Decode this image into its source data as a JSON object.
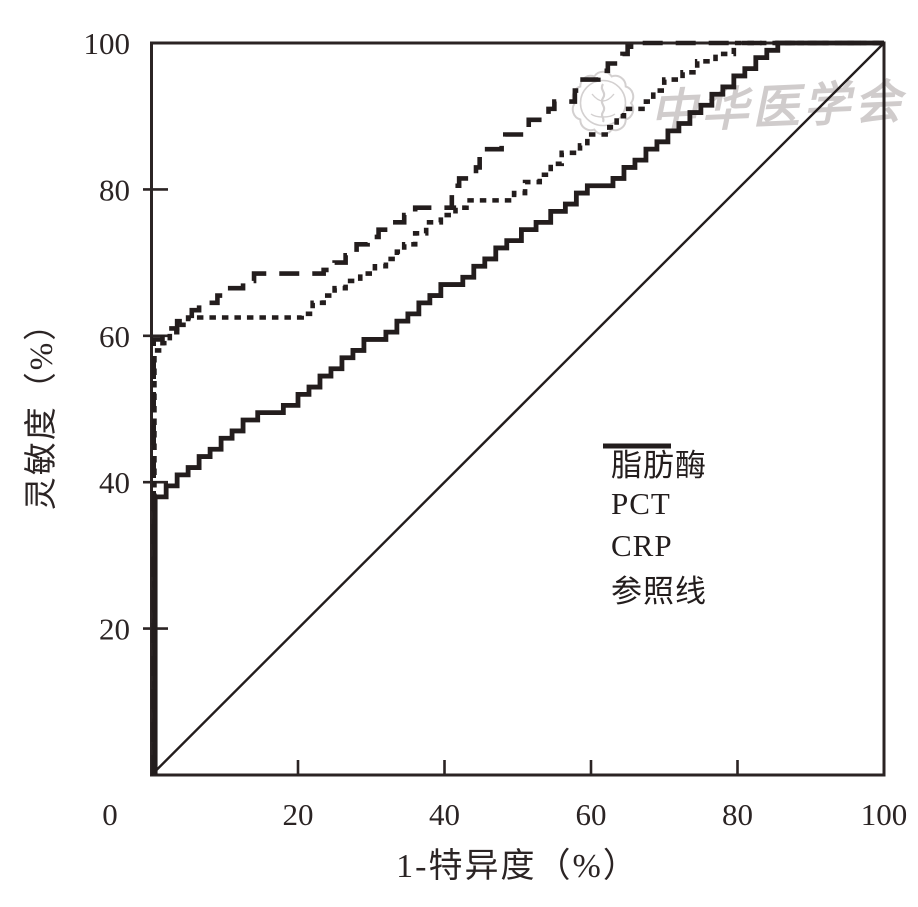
{
  "colors": {
    "line": "#231d1d",
    "frame": "#2b2424",
    "text": "#2b2424",
    "watermark": "#b2adad",
    "background": "#ffffff"
  },
  "watermark": {
    "text": "中华医学会",
    "seal_icon": "chinese-medical-association-seal"
  },
  "legend": {
    "items": [
      {
        "key": "lipase",
        "label": "脂肪酶",
        "line": "solid-thick"
      },
      {
        "key": "pct",
        "label": "PCT",
        "line": "dotted"
      },
      {
        "key": "crp",
        "label": "CRP",
        "line": "dashed"
      },
      {
        "key": "reference",
        "label": "参照线",
        "line": "solid-thin"
      }
    ]
  },
  "chart_data": {
    "type": "line",
    "subtype": "roc-step-curves",
    "title": "",
    "xlabel": "1-特异度（%）",
    "ylabel": "灵敏度（%）",
    "xlim": [
      0,
      100
    ],
    "ylim": [
      0,
      100
    ],
    "grid": false,
    "frame": true,
    "legend_position": "inside-lower-right",
    "x_tick_labels": [
      0,
      20,
      40,
      60,
      80,
      100
    ],
    "y_tick_labels": [
      20,
      40,
      60,
      80,
      100
    ],
    "x_tick_marks": [
      20,
      40,
      60,
      80
    ],
    "y_tick_marks": [
      20,
      40,
      60,
      80
    ],
    "series": [
      {
        "key": "lipase",
        "name": "脂肪酶",
        "line": "solid-thick",
        "straight": false,
        "points": [
          [
            0.5,
            0
          ],
          [
            0.5,
            38
          ],
          [
            2,
            39.5
          ],
          [
            3.5,
            41
          ],
          [
            5,
            42
          ],
          [
            6.5,
            43.5
          ],
          [
            8,
            44.5
          ],
          [
            9.5,
            46
          ],
          [
            11,
            47
          ],
          [
            12.5,
            48.5
          ],
          [
            14.5,
            49.5
          ],
          [
            18,
            50.5
          ],
          [
            20,
            52
          ],
          [
            21.5,
            53
          ],
          [
            23,
            54.5
          ],
          [
            24.5,
            55.5
          ],
          [
            26,
            57
          ],
          [
            27.5,
            58
          ],
          [
            29,
            59.5
          ],
          [
            32,
            60.5
          ],
          [
            33.5,
            62
          ],
          [
            35,
            63
          ],
          [
            36.5,
            64.5
          ],
          [
            38,
            65.5
          ],
          [
            39.5,
            67
          ],
          [
            42.5,
            68
          ],
          [
            44,
            69.5
          ],
          [
            45.5,
            70.5
          ],
          [
            47,
            72
          ],
          [
            48.5,
            73
          ],
          [
            50.5,
            74.5
          ],
          [
            52.5,
            75.5
          ],
          [
            54.5,
            77
          ],
          [
            56.5,
            78
          ],
          [
            58,
            79.5
          ],
          [
            59.5,
            80.5
          ],
          [
            63,
            81.5
          ],
          [
            64.5,
            83
          ],
          [
            66,
            84
          ],
          [
            67.5,
            85.5
          ],
          [
            69,
            86.5
          ],
          [
            70.5,
            88
          ],
          [
            72,
            89
          ],
          [
            73.5,
            90.5
          ],
          [
            75,
            91.5
          ],
          [
            76.5,
            93
          ],
          [
            78,
            94
          ],
          [
            79.5,
            95.5
          ],
          [
            81,
            96.5
          ],
          [
            82.5,
            98
          ],
          [
            84,
            99
          ],
          [
            85.5,
            100
          ],
          [
            100,
            100
          ]
        ]
      },
      {
        "key": "pct",
        "name": "PCT",
        "line": "dotted",
        "straight": false,
        "points": [
          [
            0.4,
            0
          ],
          [
            0.4,
            58
          ],
          [
            1.5,
            59
          ],
          [
            2.5,
            60.5
          ],
          [
            3.5,
            61.5
          ],
          [
            5,
            62.5
          ],
          [
            20.5,
            63
          ],
          [
            22,
            64.5
          ],
          [
            23.5,
            65.5
          ],
          [
            25,
            66.5
          ],
          [
            26.5,
            67.5
          ],
          [
            28.5,
            68.5
          ],
          [
            30.5,
            69.5
          ],
          [
            32,
            70.5
          ],
          [
            33.5,
            71.5
          ],
          [
            34.5,
            72.5
          ],
          [
            36,
            74
          ],
          [
            37.5,
            75.5
          ],
          [
            39.5,
            76.5
          ],
          [
            41.5,
            77.5
          ],
          [
            43,
            78.5
          ],
          [
            49.5,
            79.5
          ],
          [
            51,
            81
          ],
          [
            53,
            82
          ],
          [
            54.5,
            83.5
          ],
          [
            56,
            85
          ],
          [
            58.5,
            86
          ],
          [
            59.5,
            87.5
          ],
          [
            62.5,
            88.5
          ],
          [
            63.5,
            90
          ],
          [
            64.5,
            91
          ],
          [
            67.5,
            92
          ],
          [
            68.5,
            93.5
          ],
          [
            70,
            95
          ],
          [
            72.5,
            96
          ],
          [
            74.5,
            97.5
          ],
          [
            77,
            98.5
          ],
          [
            79.5,
            100
          ],
          [
            100,
            100
          ]
        ]
      },
      {
        "key": "crp",
        "name": "CRP",
        "line": "dashed",
        "straight": false,
        "points": [
          [
            0.3,
            0
          ],
          [
            0.3,
            59.5
          ],
          [
            1.5,
            61
          ],
          [
            3.5,
            62
          ],
          [
            5.5,
            63.5
          ],
          [
            6.5,
            64.5
          ],
          [
            9,
            65.5
          ],
          [
            10,
            66.5
          ],
          [
            12.5,
            67.5
          ],
          [
            14,
            68.5
          ],
          [
            23.5,
            69
          ],
          [
            25,
            70
          ],
          [
            26.5,
            71
          ],
          [
            28,
            72.5
          ],
          [
            29.5,
            73.5
          ],
          [
            31,
            74.5
          ],
          [
            32.5,
            75.5
          ],
          [
            34.5,
            76.5
          ],
          [
            36,
            77.5
          ],
          [
            41,
            80.5
          ],
          [
            42,
            81.5
          ],
          [
            44.3,
            83
          ],
          [
            44.8,
            85.5
          ],
          [
            47.8,
            86.5
          ],
          [
            48.3,
            87.5
          ],
          [
            51,
            88.5
          ],
          [
            51.5,
            89.5
          ],
          [
            54.2,
            91
          ],
          [
            55,
            92
          ],
          [
            57.8,
            93.5
          ],
          [
            58.5,
            95
          ],
          [
            61,
            96.2
          ],
          [
            62.3,
            97.2
          ],
          [
            64.3,
            98.5
          ],
          [
            65,
            99.5
          ],
          [
            66.3,
            100
          ],
          [
            100,
            100
          ]
        ]
      },
      {
        "key": "reference",
        "name": "参照线",
        "line": "solid-thin",
        "straight": true,
        "points": [
          [
            0,
            0
          ],
          [
            100,
            100
          ]
        ]
      }
    ]
  }
}
